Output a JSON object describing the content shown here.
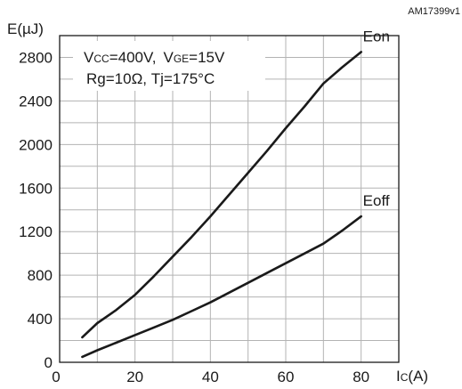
{
  "figure_code": "AM17399v1",
  "chart_data": {
    "type": "line",
    "ylabel": "E(µJ)",
    "xlabel_main": "I",
    "xlabel_sub": "C",
    "xlabel_unit": "(A)",
    "xlim": [
      0,
      90
    ],
    "ylim": [
      0,
      3000
    ],
    "x_ticks": [
      0,
      20,
      40,
      60,
      80
    ],
    "y_ticks": [
      0,
      400,
      800,
      1200,
      1600,
      2000,
      2400,
      2800
    ],
    "grid": true,
    "conditions": {
      "line1": {
        "p1_main": "V",
        "p1_sub": "CC",
        "p1_val": "=400V,",
        "p2_main": "V",
        "p2_sub": "GE",
        "p2_val": "=15V"
      },
      "line2": "Rg=10Ω,  Tj=175°C"
    },
    "series": [
      {
        "name": "Eon",
        "x": [
          6,
          10,
          15,
          20,
          25,
          30,
          35,
          40,
          45,
          50,
          55,
          60,
          65,
          70,
          75,
          80
        ],
        "y": [
          230,
          360,
          480,
          620,
          790,
          970,
          1150,
          1340,
          1540,
          1740,
          1940,
          2150,
          2350,
          2560,
          2710,
          2850
        ]
      },
      {
        "name": "Eoff",
        "x": [
          6,
          10,
          15,
          20,
          25,
          30,
          35,
          40,
          45,
          50,
          55,
          60,
          65,
          70,
          75,
          80
        ],
        "y": [
          50,
          110,
          180,
          250,
          320,
          390,
          470,
          550,
          640,
          730,
          820,
          910,
          1000,
          1090,
          1210,
          1340
        ]
      }
    ]
  }
}
